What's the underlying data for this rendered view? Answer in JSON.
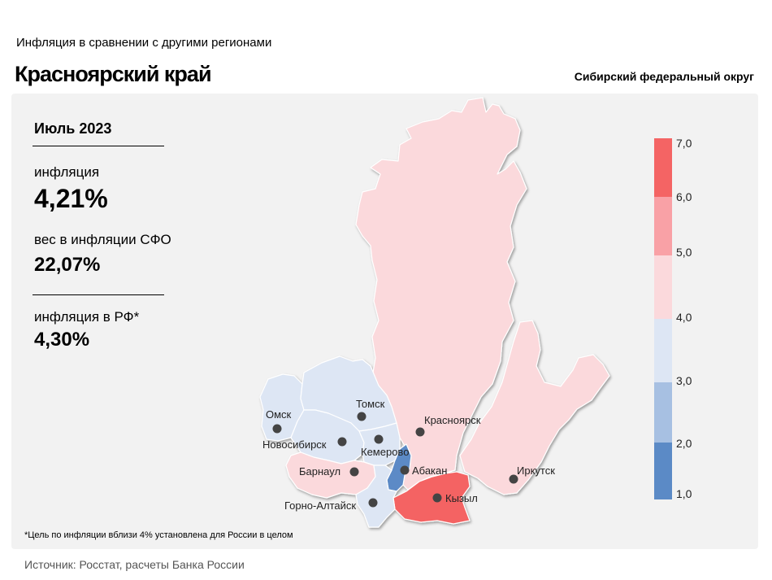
{
  "header": {
    "subtitle": "Инфляция  в сравнении  с другими  регионами",
    "title": "Красноярский край",
    "district": "Сибирский федеральный округ"
  },
  "stats": {
    "period": "Июль 2023",
    "inflation_label": "инфляция",
    "inflation_value": "4,21%",
    "weight_label": "вес в инфляции  СФО",
    "weight_value": "22,07%",
    "rf_label": "инфляция  в РФ*",
    "rf_value": "4,30%"
  },
  "footnote": "*Цель по инфляции вблизи 4% установлена для России в целом",
  "source": "Источник: Росстат, расчеты Банка России",
  "legend": {
    "ticks": [
      "7,0",
      "6,0",
      "5,0",
      "4,0",
      "3,0",
      "2,0",
      "1,0"
    ],
    "colors": [
      "#f46464",
      "#f9a1a6",
      "#fbd9dc",
      "#dde6f4",
      "#a7c0e2",
      "#5b8ac6"
    ]
  },
  "regions": [
    {
      "name": "Красноярский край",
      "color": "#fbd9dc"
    },
    {
      "name": "Иркутская область",
      "color": "#fbd9dc"
    },
    {
      "name": "Республика Тыва",
      "color": "#f46464"
    },
    {
      "name": "Республика Хакасия",
      "color": "#5b8ac6"
    },
    {
      "name": "Томская область",
      "color": "#dde6f4"
    },
    {
      "name": "Омская область",
      "color": "#dde6f4"
    },
    {
      "name": "Новосибирская область",
      "color": "#dde6f4"
    },
    {
      "name": "Кемеровская область",
      "color": "#dde6f4"
    },
    {
      "name": "Алтайский край",
      "color": "#fbd9dc"
    },
    {
      "name": "Республика Алтай",
      "color": "#dde6f4"
    }
  ],
  "cities": {
    "omsk": "Омск",
    "tomsk": "Томск",
    "krasnoyarsk": "Красноярск",
    "novosibirsk": "Новосибирск",
    "kemerovo": "Кемерово",
    "abakan": "Абакан",
    "barnaul": "Барнаул",
    "kyzyl": "Кызыл",
    "irkutsk": "Иркутск",
    "gorno_altaysk": "Горно-Алтайск"
  }
}
